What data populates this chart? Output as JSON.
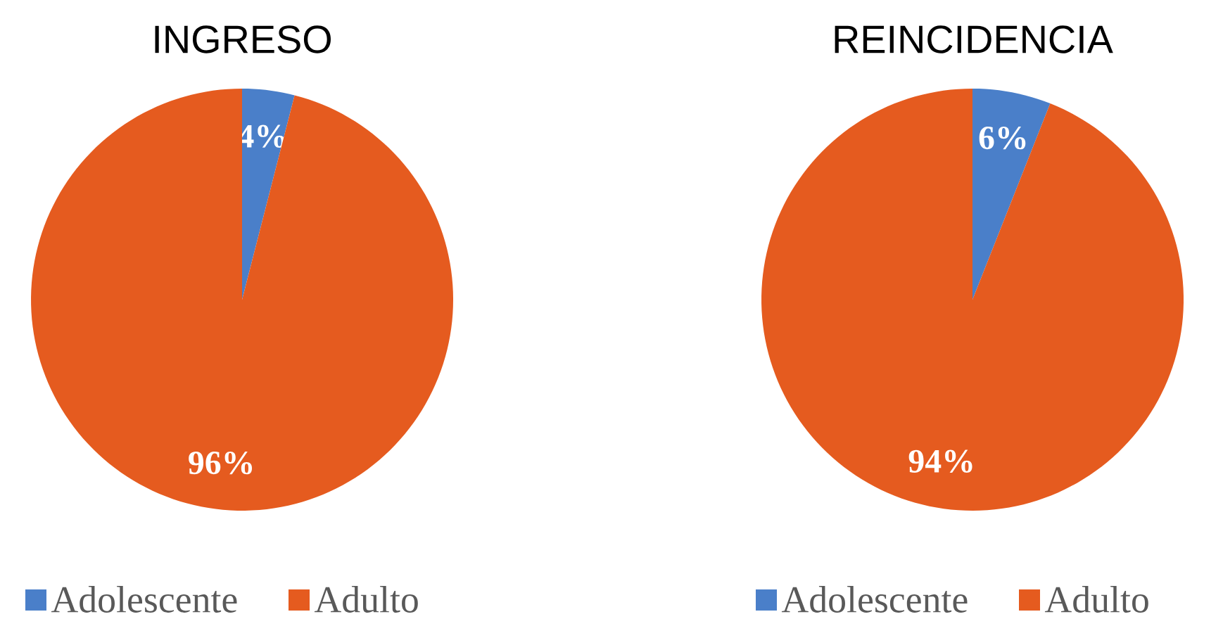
{
  "chart_data": [
    {
      "type": "pie",
      "title": "INGRESO",
      "categories": [
        "Adolescente",
        "Adulto"
      ],
      "values": [
        4,
        96
      ],
      "colors": [
        "#4a7fc9",
        "#e55b1f"
      ],
      "value_labels": [
        "4%",
        "96%"
      ],
      "legend": "bottom"
    },
    {
      "type": "pie",
      "title": "REINCIDENCIA",
      "categories": [
        "Adolescente",
        "Adulto"
      ],
      "values": [
        6,
        94
      ],
      "colors": [
        "#4a7fc9",
        "#e55b1f"
      ],
      "value_labels": [
        "6%",
        "94%"
      ],
      "legend": "bottom"
    }
  ]
}
